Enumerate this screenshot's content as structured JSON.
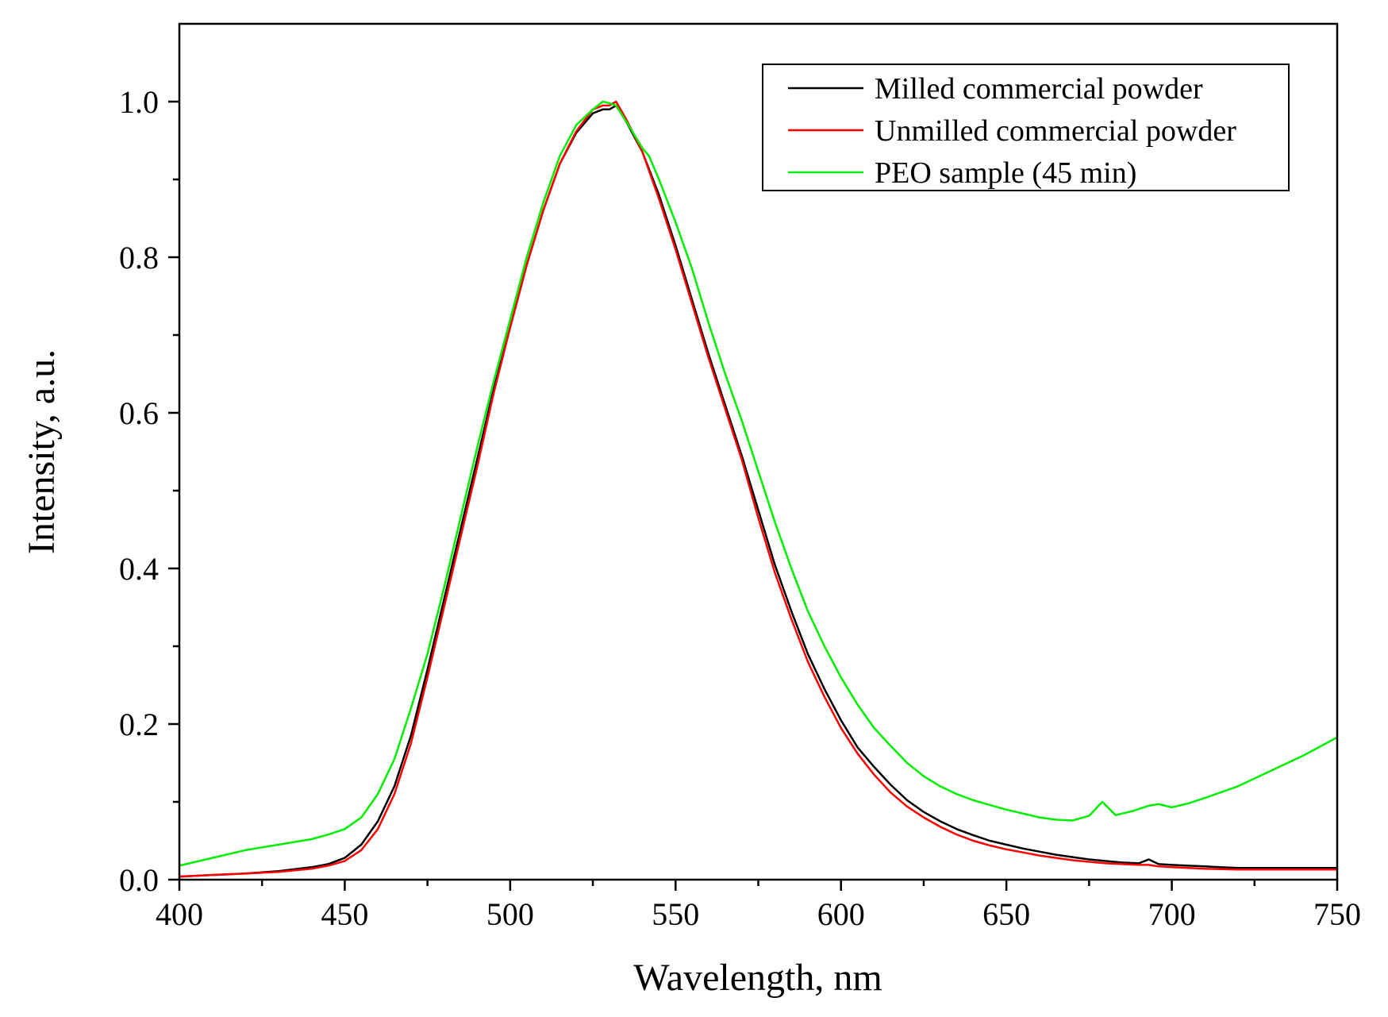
{
  "chart_data": {
    "type": "line",
    "title": "",
    "xlabel": "Wavelength, nm",
    "ylabel": "Intensity, a.u.",
    "xlim": [
      400,
      750
    ],
    "ylim": [
      0.0,
      1.1
    ],
    "xticks": [
      400,
      450,
      500,
      550,
      600,
      650,
      700,
      750
    ],
    "yticks": [
      0.0,
      0.2,
      0.4,
      0.6,
      0.8,
      1.0
    ],
    "xtick_labels": [
      "400",
      "450",
      "500",
      "550",
      "600",
      "650",
      "700",
      "750"
    ],
    "ytick_labels": [
      "0.0",
      "0.2",
      "0.4",
      "0.6",
      "0.8",
      "1.0"
    ],
    "legend_position": "top-right",
    "grid": false,
    "series": [
      {
        "name": "Milled commercial powder",
        "color": "#000000",
        "x": [
          400,
          410,
          420,
          430,
          440,
          445,
          450,
          455,
          460,
          465,
          470,
          475,
          480,
          485,
          490,
          495,
          500,
          505,
          510,
          515,
          520,
          525,
          528,
          530,
          532,
          535,
          540,
          545,
          550,
          555,
          560,
          565,
          570,
          575,
          580,
          585,
          590,
          595,
          600,
          605,
          610,
          615,
          620,
          625,
          630,
          635,
          640,
          645,
          650,
          655,
          660,
          665,
          670,
          675,
          680,
          685,
          690,
          693,
          696,
          700,
          705,
          710,
          720,
          730,
          740,
          750
        ],
        "y": [
          0.004,
          0.006,
          0.008,
          0.011,
          0.016,
          0.02,
          0.028,
          0.045,
          0.075,
          0.12,
          0.185,
          0.27,
          0.36,
          0.45,
          0.54,
          0.63,
          0.71,
          0.79,
          0.86,
          0.92,
          0.96,
          0.985,
          0.99,
          0.99,
          0.995,
          0.975,
          0.935,
          0.88,
          0.815,
          0.745,
          0.675,
          0.61,
          0.545,
          0.475,
          0.405,
          0.345,
          0.29,
          0.245,
          0.205,
          0.17,
          0.145,
          0.122,
          0.102,
          0.087,
          0.075,
          0.065,
          0.057,
          0.05,
          0.045,
          0.04,
          0.036,
          0.032,
          0.029,
          0.026,
          0.024,
          0.022,
          0.021,
          0.026,
          0.02,
          0.019,
          0.018,
          0.017,
          0.015,
          0.015,
          0.015,
          0.015
        ]
      },
      {
        "name": "Unmilled commercial powder",
        "color": "#ff0000",
        "x": [
          400,
          410,
          420,
          430,
          440,
          445,
          450,
          455,
          460,
          465,
          470,
          475,
          480,
          485,
          490,
          495,
          500,
          505,
          510,
          515,
          520,
          525,
          528,
          530,
          532,
          535,
          540,
          545,
          550,
          555,
          560,
          565,
          570,
          575,
          580,
          585,
          590,
          595,
          600,
          605,
          610,
          615,
          620,
          625,
          630,
          635,
          640,
          645,
          650,
          655,
          660,
          665,
          670,
          675,
          680,
          685,
          690,
          693,
          696,
          700,
          705,
          710,
          720,
          730,
          740,
          750
        ],
        "y": [
          0.004,
          0.006,
          0.008,
          0.01,
          0.014,
          0.018,
          0.024,
          0.038,
          0.065,
          0.11,
          0.175,
          0.26,
          0.35,
          0.44,
          0.53,
          0.625,
          0.71,
          0.79,
          0.86,
          0.92,
          0.962,
          0.99,
          0.995,
          0.995,
          1.0,
          0.978,
          0.935,
          0.875,
          0.81,
          0.74,
          0.67,
          0.605,
          0.54,
          0.465,
          0.395,
          0.335,
          0.28,
          0.235,
          0.195,
          0.162,
          0.135,
          0.112,
          0.094,
          0.08,
          0.068,
          0.058,
          0.05,
          0.044,
          0.039,
          0.035,
          0.031,
          0.028,
          0.025,
          0.023,
          0.021,
          0.02,
          0.019,
          0.019,
          0.017,
          0.016,
          0.015,
          0.014,
          0.013,
          0.013,
          0.013,
          0.013
        ]
      },
      {
        "name": "PEO sample (45 min)",
        "color": "#00ee00",
        "x": [
          400,
          410,
          420,
          430,
          440,
          445,
          450,
          455,
          460,
          465,
          470,
          475,
          480,
          485,
          490,
          495,
          500,
          505,
          510,
          515,
          520,
          525,
          528,
          530,
          532,
          535,
          540,
          542,
          545,
          550,
          555,
          560,
          565,
          570,
          575,
          580,
          585,
          590,
          595,
          600,
          605,
          610,
          615,
          620,
          625,
          630,
          635,
          640,
          645,
          650,
          655,
          660,
          665,
          670,
          675,
          679,
          683,
          688,
          693,
          696,
          700,
          705,
          710,
          720,
          730,
          740,
          750
        ],
        "y": [
          0.018,
          0.028,
          0.038,
          0.045,
          0.052,
          0.058,
          0.065,
          0.08,
          0.11,
          0.155,
          0.22,
          0.29,
          0.375,
          0.465,
          0.555,
          0.64,
          0.72,
          0.8,
          0.87,
          0.93,
          0.97,
          0.99,
          1.0,
          0.998,
          0.995,
          0.975,
          0.94,
          0.93,
          0.9,
          0.845,
          0.785,
          0.715,
          0.65,
          0.59,
          0.525,
          0.46,
          0.4,
          0.345,
          0.3,
          0.26,
          0.225,
          0.195,
          0.172,
          0.15,
          0.133,
          0.12,
          0.11,
          0.102,
          0.096,
          0.09,
          0.085,
          0.08,
          0.077,
          0.076,
          0.082,
          0.1,
          0.083,
          0.088,
          0.095,
          0.097,
          0.093,
          0.098,
          0.105,
          0.12,
          0.14,
          0.16,
          0.183
        ]
      }
    ]
  }
}
